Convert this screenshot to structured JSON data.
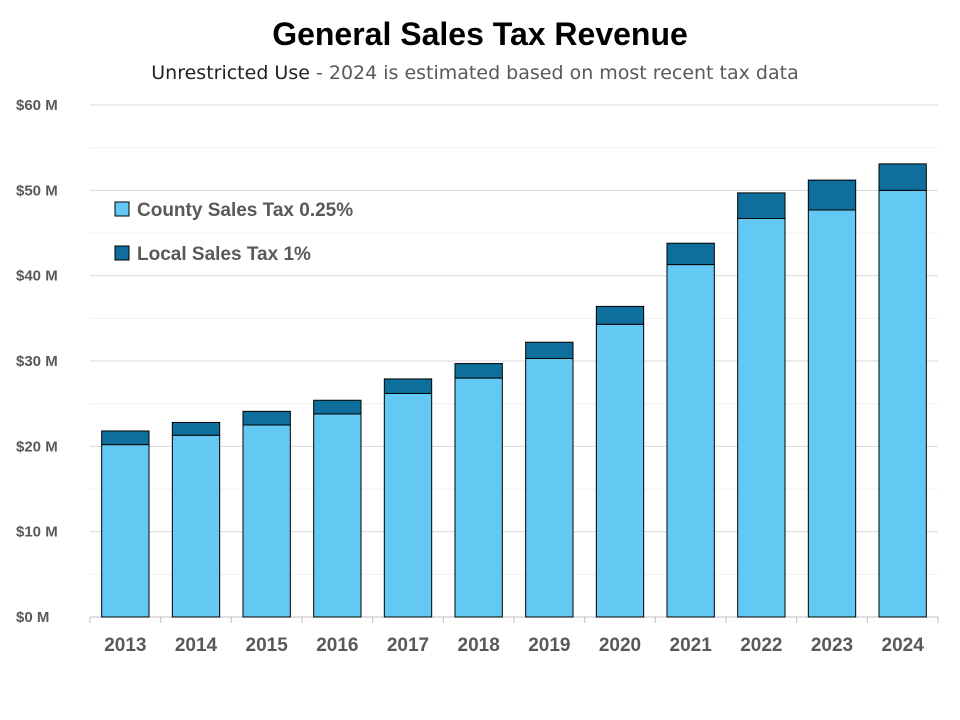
{
  "chart_data": {
    "type": "bar",
    "stacked": true,
    "title": "General Sales Tax Revenue",
    "subtitle_main": "Unrestricted Use",
    "subtitle_note": " - 2024 is estimated based on most recent tax data",
    "xlabel": "",
    "ylabel": "",
    "ylim": [
      0,
      60
    ],
    "yticks": [
      0,
      10,
      20,
      30,
      40,
      50,
      60
    ],
    "ytick_labels": [
      "$0 M",
      "$10 M",
      "$20 M",
      "$30 M",
      "$40 M",
      "$50 M",
      "$60 M"
    ],
    "grid": true,
    "legend_placement": "top-left",
    "categories": [
      "2013",
      "2014",
      "2015",
      "2016",
      "2017",
      "2018",
      "2019",
      "2020",
      "2021",
      "2022",
      "2023",
      "2024"
    ],
    "series": [
      {
        "name": "County Sales Tax 0.25%",
        "color": "#63c9f3",
        "values": [
          20.2,
          21.3,
          22.5,
          23.8,
          26.2,
          28.0,
          30.3,
          34.3,
          41.3,
          46.7,
          47.7,
          50.0
        ]
      },
      {
        "name": "Local Sales Tax 1%",
        "color": "#0f6f9c",
        "values": [
          1.6,
          1.5,
          1.6,
          1.6,
          1.7,
          1.7,
          1.9,
          2.1,
          2.5,
          3.0,
          3.5,
          3.1
        ]
      }
    ]
  }
}
